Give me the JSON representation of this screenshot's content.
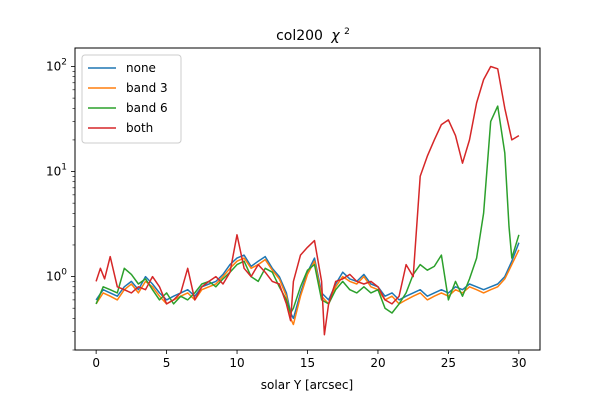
{
  "chart_data": {
    "type": "line",
    "title_base": "col200",
    "title_symbol": "χ",
    "title_exp": "2",
    "xlabel": "solar Y [arcsec]",
    "ylabel": "",
    "yscale": "log",
    "xlim": [
      -1.5,
      31.5
    ],
    "ylim": [
      0.2,
      150
    ],
    "x_ticks": [
      0,
      5,
      10,
      15,
      20,
      25,
      30
    ],
    "x_tick_labels": [
      "0",
      "5",
      "10",
      "15",
      "20",
      "25",
      "30"
    ],
    "y_major_ticks": [
      1,
      10,
      100
    ],
    "y_tick_base": "10",
    "y_tick_exps": [
      "0",
      "1",
      "2"
    ],
    "legend_position": "upper-left",
    "series": [
      {
        "name": "none",
        "color": "#1f77b4",
        "x": [
          0,
          0.5,
          1,
          1.5,
          2,
          2.5,
          3,
          3.5,
          4,
          4.5,
          5,
          5.5,
          6,
          6.5,
          7,
          7.5,
          8,
          8.5,
          9,
          9.5,
          10,
          10.5,
          11,
          11.5,
          12,
          12.5,
          13,
          13.5,
          13.8,
          14,
          14.5,
          15,
          15.5,
          16,
          16.5,
          17,
          17.5,
          18,
          18.5,
          19,
          19.5,
          20,
          20.5,
          21,
          21.5,
          22,
          22.5,
          23,
          23.5,
          24,
          24.5,
          25,
          25.5,
          26,
          26.5,
          27,
          27.5,
          28,
          28.5,
          29,
          29.5,
          30
        ],
        "y": [
          0.6,
          0.75,
          0.7,
          0.65,
          0.8,
          0.9,
          0.75,
          1.0,
          0.85,
          0.7,
          0.6,
          0.65,
          0.7,
          0.75,
          0.65,
          0.8,
          0.85,
          0.9,
          1.05,
          1.3,
          1.5,
          1.6,
          1.25,
          1.4,
          1.55,
          1.2,
          1.0,
          0.7,
          0.45,
          0.4,
          0.7,
          1.1,
          1.5,
          0.7,
          0.6,
          0.85,
          1.1,
          0.95,
          0.9,
          1.05,
          0.85,
          0.8,
          0.65,
          0.7,
          0.6,
          0.65,
          0.7,
          0.75,
          0.65,
          0.7,
          0.75,
          0.7,
          0.8,
          0.75,
          0.85,
          0.8,
          0.75,
          0.8,
          0.85,
          1.0,
          1.4,
          2.1
        ]
      },
      {
        "name": "band 3",
        "color": "#ff7f0e",
        "x": [
          0,
          0.5,
          1,
          1.5,
          2,
          2.5,
          3,
          3.5,
          4,
          4.5,
          5,
          5.5,
          6,
          6.5,
          7,
          7.5,
          8,
          8.5,
          9,
          9.5,
          10,
          10.5,
          11,
          11.5,
          12,
          12.5,
          13,
          13.5,
          13.8,
          14,
          14.5,
          15,
          15.5,
          16,
          16.5,
          17,
          17.5,
          18,
          18.5,
          19,
          19.5,
          20,
          20.5,
          21,
          21.5,
          22,
          22.5,
          23,
          23.5,
          24,
          24.5,
          25,
          25.5,
          26,
          26.5,
          27,
          27.5,
          28,
          28.5,
          29,
          29.5,
          30
        ],
        "y": [
          0.55,
          0.7,
          0.65,
          0.6,
          0.75,
          0.85,
          0.7,
          0.9,
          0.8,
          0.65,
          0.55,
          0.6,
          0.65,
          0.7,
          0.6,
          0.75,
          0.8,
          0.85,
          1.0,
          1.2,
          1.4,
          1.5,
          1.2,
          1.3,
          1.45,
          1.15,
          0.95,
          0.65,
          0.4,
          0.35,
          0.65,
          1.05,
          1.4,
          0.65,
          0.55,
          0.8,
          1.0,
          0.9,
          0.85,
          1.0,
          0.8,
          0.75,
          0.6,
          0.65,
          0.55,
          0.6,
          0.65,
          0.7,
          0.6,
          0.65,
          0.7,
          0.65,
          0.75,
          0.7,
          0.8,
          0.75,
          0.7,
          0.75,
          0.8,
          0.95,
          1.3,
          1.8
        ]
      },
      {
        "name": "band 6",
        "color": "#2ca02c",
        "x": [
          0,
          0.5,
          1,
          1.5,
          2,
          2.5,
          3,
          3.5,
          4,
          4.5,
          5,
          5.5,
          6,
          6.5,
          7,
          7.5,
          8,
          8.5,
          9,
          9.5,
          10,
          10.5,
          11,
          11.5,
          12,
          12.5,
          13,
          13.5,
          13.8,
          14,
          14.5,
          15,
          15.5,
          16,
          16.5,
          17,
          17.5,
          18,
          18.5,
          19,
          19.5,
          20,
          20.5,
          21,
          21.5,
          22,
          22.5,
          23,
          23.5,
          24,
          24.5,
          25,
          25.5,
          26,
          26.5,
          27,
          27.5,
          28,
          28.5,
          29,
          29.3,
          29.5,
          30
        ],
        "y": [
          0.55,
          0.8,
          0.75,
          0.7,
          1.2,
          1.05,
          0.85,
          0.95,
          0.75,
          0.6,
          0.7,
          0.55,
          0.65,
          0.6,
          0.7,
          0.85,
          0.9,
          0.8,
          0.95,
          1.1,
          1.3,
          1.4,
          1.0,
          0.9,
          1.2,
          1.1,
          0.8,
          0.6,
          0.45,
          0.5,
          0.8,
          1.15,
          1.3,
          0.6,
          0.55,
          0.75,
          0.9,
          0.75,
          0.7,
          0.8,
          0.7,
          0.75,
          0.5,
          0.45,
          0.55,
          0.7,
          1.05,
          1.3,
          1.15,
          1.25,
          1.6,
          0.6,
          0.9,
          0.65,
          0.95,
          1.5,
          4.0,
          30,
          42,
          15,
          3.0,
          1.5,
          2.5
        ]
      },
      {
        "name": "both",
        "color": "#d62728",
        "x": [
          0,
          0.3,
          0.6,
          1,
          1.5,
          2,
          2.5,
          3,
          3.5,
          4,
          4.5,
          5,
          5.5,
          6,
          6.5,
          7,
          7.5,
          8,
          8.5,
          9,
          9.5,
          10,
          10.5,
          11,
          11.5,
          12,
          12.5,
          13,
          13.5,
          13.8,
          14,
          14.5,
          15,
          15.5,
          16,
          16.2,
          16.5,
          17,
          17.5,
          18,
          18.5,
          19,
          19.5,
          20,
          20.5,
          21,
          21.5,
          22,
          22.5,
          23,
          23.5,
          24,
          24.5,
          25,
          25.5,
          26,
          26.5,
          27,
          27.5,
          28,
          28.5,
          29,
          29.5,
          30
        ],
        "y": [
          0.9,
          1.2,
          0.95,
          1.55,
          0.8,
          0.75,
          0.7,
          0.8,
          0.75,
          1.0,
          0.8,
          0.55,
          0.6,
          0.7,
          1.2,
          0.6,
          0.8,
          0.9,
          1.0,
          0.85,
          1.1,
          2.5,
          1.2,
          1.0,
          1.3,
          1.1,
          0.9,
          0.85,
          0.55,
          0.38,
          0.9,
          1.6,
          1.9,
          2.2,
          0.9,
          0.28,
          0.55,
          0.9,
          0.95,
          1.05,
          0.9,
          0.85,
          0.9,
          0.8,
          0.6,
          0.55,
          0.65,
          1.3,
          1.0,
          9.0,
          14,
          20,
          28,
          31,
          22,
          12,
          20,
          45,
          75,
          100,
          95,
          40,
          20,
          22
        ]
      }
    ]
  }
}
